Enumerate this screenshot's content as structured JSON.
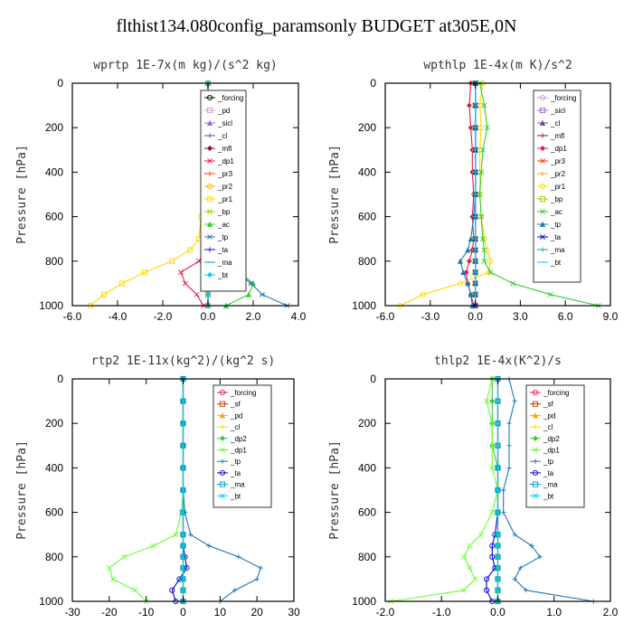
{
  "page": {
    "title": "flthist134.080config_paramsonly  BUDGET at305E,0N"
  },
  "chart_data": [
    {
      "type": "line",
      "title": "wprtp  1E-7x(m kg)/(s^2 kg)",
      "ylabel": "Pressure [hPa]",
      "xlim": [
        -6,
        4
      ],
      "ylim": [
        1000,
        0
      ],
      "xticks": [
        "-6.0",
        "-4.0",
        "-2.0",
        "0.0",
        "2.0",
        "4.0"
      ],
      "xtick_values": [
        -6,
        -4,
        -2,
        0,
        2,
        4
      ],
      "yticks": [
        "0",
        "200",
        "400",
        "600",
        "800",
        "1000"
      ],
      "ytick_values": [
        0,
        200,
        400,
        600,
        800,
        1000
      ],
      "legend_position": "top-right",
      "y": [
        0,
        100,
        200,
        300,
        400,
        500,
        600,
        700,
        750,
        800,
        850,
        900,
        950,
        1000
      ],
      "series": [
        {
          "name": "_forcing",
          "color": "#000000",
          "values": [
            0,
            0,
            0,
            0,
            0,
            0,
            0,
            0,
            0,
            0,
            0,
            0,
            0,
            0
          ]
        },
        {
          "name": "_pd",
          "color": "#cc99cc",
          "values": [
            0,
            0,
            0,
            0,
            0,
            0,
            0,
            0,
            0,
            0,
            0,
            0,
            0,
            0
          ]
        },
        {
          "name": "_sicl",
          "color": "#9966cc",
          "values": [
            0,
            0,
            0,
            0,
            0,
            0,
            0,
            0,
            0,
            0,
            0,
            0,
            0,
            0
          ]
        },
        {
          "name": "_cl",
          "color": "#7a3d99",
          "values": [
            0,
            0,
            0,
            0,
            0,
            0,
            0,
            0,
            0,
            0,
            0,
            0,
            0,
            0
          ]
        },
        {
          "name": "_mfl",
          "color": "#99004d",
          "values": [
            0,
            0,
            0,
            0,
            0,
            0,
            0,
            0,
            0,
            0,
            0,
            0,
            0,
            0
          ]
        },
        {
          "name": "_dp1",
          "color": "#e6194b",
          "values": [
            0,
            0,
            0,
            0,
            0,
            0,
            0,
            0,
            -0.1,
            -0.4,
            -1.2,
            -1.0,
            -0.5,
            -0.2
          ]
        },
        {
          "name": "_pr3",
          "color": "#ff3300",
          "values": [
            0,
            0,
            0,
            0,
            0,
            0,
            0,
            0,
            0,
            0,
            0,
            0,
            0,
            0
          ]
        },
        {
          "name": "_pr2",
          "color": "#ffa500",
          "values": [
            0,
            0,
            0,
            0,
            0,
            0,
            0,
            0,
            0,
            0,
            0,
            0,
            0,
            0
          ]
        },
        {
          "name": "_pr1",
          "color": "#ffd700",
          "values": [
            0,
            0,
            0,
            -0.05,
            -0.1,
            -0.2,
            -0.3,
            -0.4,
            -0.8,
            -1.6,
            -2.8,
            -3.8,
            -4.6,
            -5.2
          ]
        },
        {
          "name": "_bp",
          "color": "#99cc00",
          "values": [
            0,
            0,
            0,
            0,
            0,
            0,
            0,
            0,
            0,
            0,
            0,
            0,
            0,
            0
          ]
        },
        {
          "name": "_ac",
          "color": "#33cc33",
          "values": [
            0,
            0,
            0,
            0.05,
            0.1,
            0.15,
            0.2,
            0.1,
            0.3,
            0.8,
            1.4,
            2.0,
            1.8,
            0.8
          ]
        },
        {
          "name": "_tp",
          "color": "#1f77b4",
          "values": [
            0,
            0,
            0,
            0.05,
            0.1,
            0.1,
            0.2,
            0.3,
            0.5,
            0.9,
            1.3,
            1.9,
            2.4,
            3.5
          ]
        },
        {
          "name": "_ta",
          "color": "#0000cc",
          "values": [
            0,
            0,
            0,
            0,
            0,
            0,
            0,
            0,
            0,
            0,
            0,
            0,
            0,
            0
          ]
        },
        {
          "name": "_ma",
          "color": "#0099cc",
          "values": [
            0,
            0,
            0,
            0,
            0,
            0,
            0,
            0,
            0,
            0,
            0,
            0,
            0,
            0
          ]
        },
        {
          "name": "_bt",
          "color": "#00ccff",
          "values": [
            0,
            0,
            0,
            0,
            0,
            0,
            0,
            0,
            0,
            0,
            0,
            0,
            0,
            0
          ]
        }
      ]
    },
    {
      "type": "line",
      "title": "wpthlp  1E-4x(m K)/s^2",
      "ylabel": "Pressure [hPa]",
      "xlim": [
        -6,
        9
      ],
      "ylim": [
        1000,
        0
      ],
      "xticks": [
        "-6.0",
        "-3.0",
        "0.0",
        "3.0",
        "6.0",
        "9.0"
      ],
      "xtick_values": [
        -6,
        -3,
        0,
        3,
        6,
        9
      ],
      "yticks": [
        "0",
        "200",
        "400",
        "600",
        "800",
        "1000"
      ],
      "ytick_values": [
        0,
        200,
        400,
        600,
        800,
        1000
      ],
      "legend_position": "top-right",
      "y": [
        0,
        100,
        200,
        300,
        400,
        500,
        600,
        700,
        750,
        800,
        850,
        900,
        950,
        1000
      ],
      "series": [
        {
          "name": "_forcing",
          "color": "#cc99cc",
          "values": [
            0,
            0,
            0,
            0,
            0,
            0,
            0,
            0,
            0,
            0,
            0,
            0,
            0,
            0
          ]
        },
        {
          "name": "_sicl",
          "color": "#9966cc",
          "values": [
            0,
            0,
            0,
            0,
            0,
            0,
            0,
            0,
            0,
            0,
            0,
            0,
            0,
            0
          ]
        },
        {
          "name": "_cl",
          "color": "#7a3d99",
          "values": [
            0,
            0,
            0,
            0,
            0,
            0,
            0,
            0,
            0,
            0,
            0,
            0,
            0,
            0
          ]
        },
        {
          "name": "_mfl",
          "color": "#99004d",
          "values": [
            0,
            0,
            0,
            0,
            0,
            0,
            0,
            0,
            0,
            0,
            0,
            0,
            0,
            0
          ]
        },
        {
          "name": "_dp1",
          "color": "#e6194b",
          "values": [
            -0.3,
            -0.4,
            -0.3,
            -0.2,
            -0.2,
            -0.1,
            -0.2,
            -0.1,
            -0.2,
            -0.4,
            -0.6,
            -0.5,
            -0.3,
            -0.1
          ]
        },
        {
          "name": "_pr3",
          "color": "#ff3300",
          "values": [
            0,
            0,
            0,
            0,
            0,
            0,
            0,
            0,
            0,
            0,
            0,
            0,
            0,
            0
          ]
        },
        {
          "name": "_pr2",
          "color": "#ffa500",
          "values": [
            0,
            0,
            0,
            0,
            0,
            0,
            0,
            0,
            0,
            0,
            0,
            0,
            0,
            0
          ]
        },
        {
          "name": "_pr1",
          "color": "#ffd700",
          "values": [
            0.5,
            0.3,
            0.4,
            0.3,
            0.3,
            0.3,
            0.4,
            0.6,
            0.8,
            1.0,
            0.9,
            -1.0,
            -3.5,
            -5.0
          ]
        },
        {
          "name": "_bp",
          "color": "#99cc00",
          "values": [
            0,
            0,
            0,
            0,
            0,
            0,
            0,
            0,
            0,
            0,
            0,
            0,
            0,
            0
          ]
        },
        {
          "name": "_ac",
          "color": "#33cc33",
          "values": [
            0.3,
            0.6,
            0.8,
            0.5,
            0.4,
            0.3,
            0.4,
            0.5,
            0.6,
            0.6,
            1.0,
            2.5,
            5.0,
            8.2
          ]
        },
        {
          "name": "_tp",
          "color": "#1f77b4",
          "values": [
            0,
            0,
            0,
            0,
            0,
            0,
            -0.1,
            -0.3,
            -0.5,
            -1.0,
            -0.8,
            -0.5,
            -0.3,
            -0.2
          ]
        },
        {
          "name": "_ta",
          "color": "#0000cc",
          "values": [
            0,
            0,
            0,
            0,
            0,
            0,
            0,
            0,
            0,
            0,
            0,
            0,
            0,
            0
          ]
        },
        {
          "name": "_ma",
          "color": "#0099cc",
          "values": [
            0,
            0,
            0,
            0,
            0,
            0,
            0,
            0,
            0,
            0,
            0,
            0,
            0,
            0
          ]
        },
        {
          "name": "_bt",
          "color": "#00ccff",
          "values": [
            0,
            0,
            0,
            0,
            0,
            0,
            0,
            0,
            0,
            0,
            0,
            0,
            0,
            0
          ]
        }
      ]
    },
    {
      "type": "line",
      "title": "rtp2  1E-11x(kg^2)/(kg^2 s)",
      "ylabel": "Pressure [hPa]",
      "xlim": [
        -30,
        30
      ],
      "ylim": [
        1000,
        0
      ],
      "xticks": [
        "-30",
        "-20",
        "-10",
        "0",
        "10",
        "20",
        "30"
      ],
      "xtick_values": [
        -30,
        -20,
        -10,
        0,
        10,
        20,
        30
      ],
      "yticks": [
        "0",
        "200",
        "400",
        "600",
        "800",
        "1000"
      ],
      "ytick_values": [
        0,
        200,
        400,
        600,
        800,
        1000
      ],
      "legend_position": "top-right",
      "y": [
        0,
        100,
        200,
        300,
        400,
        500,
        600,
        700,
        750,
        800,
        850,
        900,
        950,
        1000
      ],
      "series": [
        {
          "name": "_forcing",
          "color": "#e6194b",
          "values": [
            0,
            0,
            0,
            0,
            0,
            0,
            0,
            0,
            0,
            0,
            0,
            0,
            0,
            0
          ]
        },
        {
          "name": "_sf",
          "color": "#cc3300",
          "values": [
            0,
            0,
            0,
            0,
            0,
            0,
            0,
            0,
            0,
            0,
            0,
            0,
            0,
            0
          ]
        },
        {
          "name": "_pd",
          "color": "#ffa500",
          "values": [
            0,
            0,
            0,
            0,
            0,
            0,
            0,
            0,
            0,
            0,
            0,
            0,
            0,
            0
          ]
        },
        {
          "name": "_cl",
          "color": "#ffd700",
          "values": [
            0,
            0,
            0,
            0,
            0,
            0,
            0,
            0,
            0,
            0,
            0,
            0,
            0,
            0
          ]
        },
        {
          "name": "_dp2",
          "color": "#33cc33",
          "values": [
            0,
            0,
            0,
            0,
            0,
            0,
            0,
            0,
            0,
            0,
            0,
            0,
            0,
            0
          ]
        },
        {
          "name": "_dp1",
          "color": "#66ff33",
          "values": [
            0,
            0,
            0,
            0,
            0,
            0,
            -0.5,
            -2,
            -8,
            -16,
            -20,
            -19,
            -13,
            -10
          ]
        },
        {
          "name": "_tp",
          "color": "#1f77b4",
          "values": [
            0,
            0,
            0,
            0,
            0,
            0,
            0.5,
            2,
            7,
            15,
            21,
            20,
            14,
            10
          ]
        },
        {
          "name": "_ta",
          "color": "#0000cc",
          "values": [
            0,
            0,
            0,
            0,
            0,
            0,
            0,
            0,
            0,
            0.5,
            1,
            -1,
            -3,
            -2
          ]
        },
        {
          "name": "_ma",
          "color": "#0099cc",
          "values": [
            0,
            0,
            0,
            0,
            0,
            0,
            0,
            0,
            0,
            0,
            0,
            0,
            0,
            0
          ]
        },
        {
          "name": "_bt",
          "color": "#00ccff",
          "values": [
            0,
            0,
            0,
            0,
            0,
            0,
            0,
            0,
            0,
            0,
            0,
            0,
            0,
            0
          ]
        }
      ]
    },
    {
      "type": "line",
      "title": "thlp2  1E-4x(K^2)/s",
      "ylabel": "Pressure [hPa]",
      "xlim": [
        -2,
        2
      ],
      "ylim": [
        1000,
        0
      ],
      "xticks": [
        "-2.0",
        "-1.0",
        "0.0",
        "1.0",
        "2.0"
      ],
      "xtick_values": [
        -2,
        -1,
        0,
        1,
        2
      ],
      "yticks": [
        "0",
        "200",
        "400",
        "600",
        "800",
        "1000"
      ],
      "ytick_values": [
        0,
        200,
        400,
        600,
        800,
        1000
      ],
      "legend_position": "top-right",
      "y": [
        0,
        100,
        200,
        300,
        400,
        500,
        600,
        700,
        750,
        800,
        850,
        900,
        950,
        1000
      ],
      "series": [
        {
          "name": "_forcing",
          "color": "#e6194b",
          "values": [
            0,
            0,
            0,
            0,
            0,
            0,
            0,
            0,
            0,
            0,
            0,
            0,
            0,
            0
          ]
        },
        {
          "name": "_sf",
          "color": "#cc3300",
          "values": [
            0,
            0,
            0,
            0,
            0,
            0,
            0,
            0,
            0,
            0,
            0,
            0,
            0,
            0
          ]
        },
        {
          "name": "_pd",
          "color": "#ffa500",
          "values": [
            0,
            0,
            0,
            0,
            0,
            0,
            0,
            0,
            0,
            0,
            0,
            0,
            0,
            0
          ]
        },
        {
          "name": "_cl",
          "color": "#ffd700",
          "values": [
            0,
            0,
            0,
            0,
            0,
            0,
            0,
            0,
            0,
            0,
            0,
            0,
            0,
            0
          ]
        },
        {
          "name": "_dp2",
          "color": "#33cc33",
          "values": [
            -0.1,
            -0.1,
            -0.1,
            -0.1,
            0,
            0,
            0,
            0,
            0,
            0,
            0,
            0,
            0,
            0
          ]
        },
        {
          "name": "_dp1",
          "color": "#66ff33",
          "values": [
            -0.1,
            -0.2,
            -0.1,
            -0.1,
            -0.1,
            0,
            -0.1,
            -0.3,
            -0.5,
            -0.6,
            -0.5,
            -0.4,
            -0.6,
            -1.9
          ]
        },
        {
          "name": "_tp",
          "color": "#1f77b4",
          "values": [
            0.2,
            0.3,
            0.2,
            0.2,
            0.2,
            0.1,
            0.1,
            0.3,
            0.6,
            0.75,
            0.4,
            0.3,
            0.5,
            1.7
          ]
        },
        {
          "name": "_ta",
          "color": "#0000cc",
          "values": [
            0,
            0,
            0,
            0,
            0,
            0,
            0,
            -0.05,
            -0.1,
            -0.1,
            -0.05,
            -0.2,
            -0.2,
            -0.1
          ]
        },
        {
          "name": "_ma",
          "color": "#0099cc",
          "values": [
            0,
            0,
            0,
            0,
            0,
            0,
            0,
            0,
            0,
            0,
            0,
            0,
            0,
            0
          ]
        },
        {
          "name": "_bt",
          "color": "#00ccff",
          "values": [
            0,
            0,
            0,
            0,
            0,
            0,
            0,
            0,
            0,
            0,
            0,
            0,
            0,
            0
          ]
        }
      ]
    }
  ]
}
